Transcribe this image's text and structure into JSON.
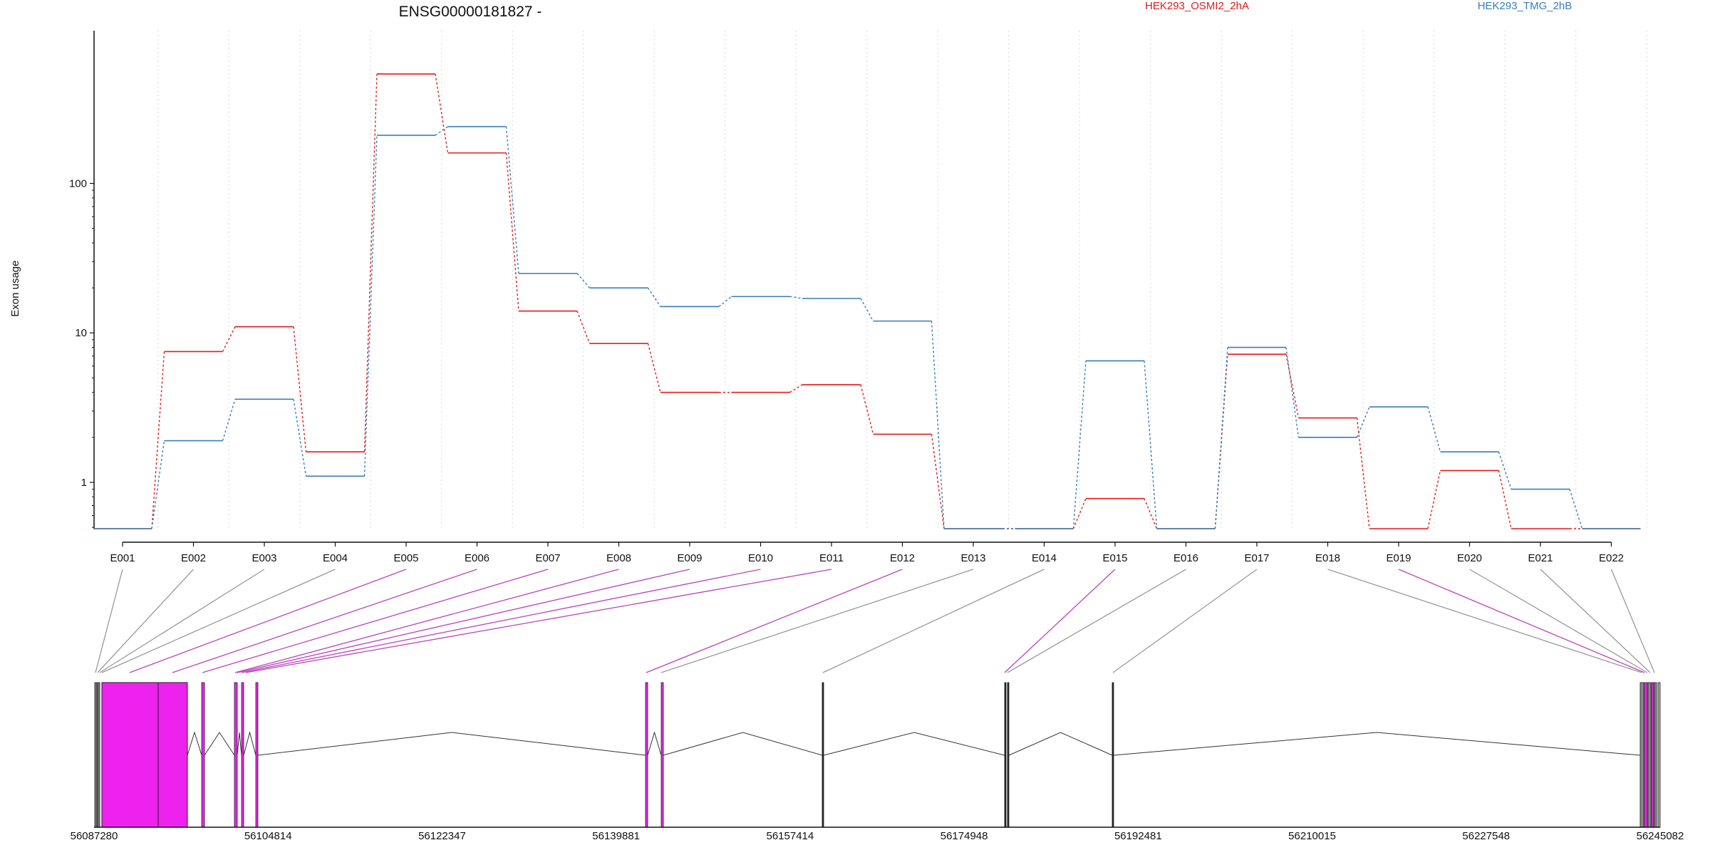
{
  "chart_data": {
    "type": "line",
    "title": "ENSG00000181827 -",
    "ylabel": "Exon usage",
    "yscale": "log",
    "ylim": [
      0.49,
      800
    ],
    "yticks": [
      1,
      10,
      100
    ],
    "ytick_labels": [
      "1",
      "10",
      "100"
    ],
    "grid": "vertical dotted",
    "legend_position": "top-right",
    "categories": [
      "E001",
      "E002",
      "E003",
      "E004",
      "E005",
      "E006",
      "E007",
      "E008",
      "E009",
      "E010",
      "E011",
      "E012",
      "E013",
      "E014",
      "E015",
      "E016",
      "E017",
      "E018",
      "E019",
      "E020",
      "E021",
      "E022"
    ],
    "series": [
      {
        "name": "HEK293_OSMI2_2hA",
        "color": "#e41a1c",
        "values": [
          0.49,
          7.5,
          11,
          1.6,
          540,
          160,
          14,
          8.5,
          4,
          4,
          4.5,
          2.1,
          0.49,
          0.49,
          0.78,
          0.49,
          7.2,
          2.7,
          0.49,
          1.2,
          0.49,
          0.49
        ]
      },
      {
        "name": "HEK293_TMG_2hB",
        "color": "#377eb8",
        "values": [
          0.49,
          1.9,
          3.6,
          1.1,
          210,
          240,
          25,
          20,
          15,
          17.5,
          17,
          12,
          0.49,
          0.49,
          6.5,
          0.49,
          8,
          2,
          3.2,
          1.6,
          0.9,
          0.49
        ]
      }
    ],
    "gene_model": {
      "coordinate_labels": [
        "56087280",
        "56104814",
        "56122347",
        "56139881",
        "56157414",
        "56174948",
        "56192481",
        "56210015",
        "56227548",
        "56245082"
      ],
      "highlight_color": "#ee22ee",
      "exon_highlighted": [
        false,
        false,
        false,
        false,
        true,
        true,
        true,
        true,
        true,
        true,
        true,
        true,
        false,
        false,
        true,
        false,
        false,
        false,
        true,
        false,
        false,
        false
      ]
    }
  }
}
